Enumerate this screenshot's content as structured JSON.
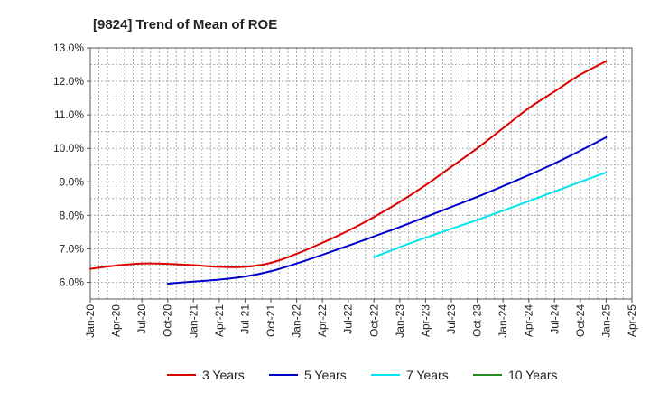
{
  "chart_data": {
    "type": "line",
    "title": "[9824]  Trend of Mean of ROE",
    "xlabel": "",
    "ylabel": "",
    "x_ticks": [
      "Jan-20",
      "Apr-20",
      "Jul-20",
      "Oct-20",
      "Jan-21",
      "Apr-21",
      "Jul-21",
      "Oct-21",
      "Jan-22",
      "Apr-22",
      "Jul-22",
      "Oct-22",
      "Jan-23",
      "Apr-23",
      "Jul-23",
      "Oct-23",
      "Jan-24",
      "Apr-24",
      "Jul-24",
      "Oct-24",
      "Jan-25",
      "Apr-25"
    ],
    "y_ticks": [
      "6.0%",
      "7.0%",
      "8.0%",
      "9.0%",
      "10.0%",
      "11.0%",
      "12.0%",
      "13.0%"
    ],
    "ylim": [
      5.5,
      13.0
    ],
    "grid": true,
    "legend_position": "bottom",
    "series": [
      {
        "name": "3 Years",
        "color": "#dd0000",
        "x": [
          "Jan-20",
          "Apr-20",
          "Jul-20",
          "Oct-20",
          "Jan-21",
          "Apr-21",
          "Jul-21",
          "Oct-21",
          "Jan-22",
          "Apr-22",
          "Jul-22",
          "Oct-22",
          "Jan-23",
          "Apr-23",
          "Jul-23",
          "Oct-23",
          "Jan-24",
          "Apr-24",
          "Jul-24",
          "Oct-24",
          "Jan-25"
        ],
        "values": [
          6.4,
          6.5,
          6.56,
          6.55,
          6.51,
          6.46,
          6.46,
          6.58,
          6.85,
          7.18,
          7.54,
          7.95,
          8.4,
          8.9,
          9.45,
          10.0,
          10.6,
          11.2,
          11.7,
          12.2,
          12.6
        ]
      },
      {
        "name": "5 Years",
        "color": "#0000cc",
        "x": [
          "Oct-20",
          "Jan-21",
          "Apr-21",
          "Jul-21",
          "Oct-21",
          "Jan-22",
          "Apr-22",
          "Jul-22",
          "Oct-22",
          "Jan-23",
          "Apr-23",
          "Jul-23",
          "Oct-23",
          "Jan-24",
          "Apr-24",
          "Jul-24",
          "Oct-24",
          "Jan-25"
        ],
        "values": [
          5.96,
          6.02,
          6.08,
          6.17,
          6.33,
          6.56,
          6.82,
          7.09,
          7.37,
          7.65,
          7.95,
          8.25,
          8.55,
          8.87,
          9.2,
          9.55,
          9.93,
          10.33
        ]
      },
      {
        "name": "7 Years",
        "color": "#00e5ee",
        "x": [
          "Oct-22",
          "Jan-23",
          "Apr-23",
          "Jul-23",
          "Oct-23",
          "Jan-24",
          "Apr-24",
          "Jul-24",
          "Oct-24",
          "Jan-25"
        ],
        "values": [
          6.75,
          7.05,
          7.33,
          7.6,
          7.86,
          8.14,
          8.42,
          8.71,
          9.0,
          9.28
        ]
      },
      {
        "name": "10 Years",
        "color": "#228b22",
        "x": [],
        "values": []
      }
    ]
  }
}
